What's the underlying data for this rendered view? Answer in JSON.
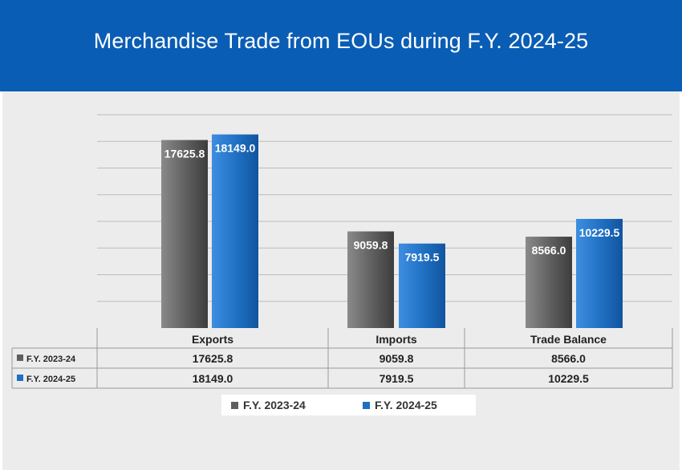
{
  "chart_data": {
    "type": "bar",
    "title": "Merchandise Trade from EOUs during F.Y. 2024-25",
    "categories": [
      "Exports",
      "Imports",
      "Trade Balance"
    ],
    "series": [
      {
        "name": "F.Y. 2023-24",
        "values": [
          17625.8,
          9059.8,
          8566.0
        ],
        "labels": [
          "17625.8",
          "9059.8",
          "8566.0"
        ],
        "color": "#5e5e5e"
      },
      {
        "name": "F.Y. 2024-25",
        "values": [
          18149.0,
          7919.5,
          10229.5
        ],
        "labels": [
          "18149.0",
          "7919.5",
          "10229.5"
        ],
        "color": "#1f6fc2"
      }
    ],
    "ylim": [
      0,
      20000
    ],
    "grid": true,
    "xlabel": "",
    "ylabel": "",
    "data_table": true,
    "legend_position": "bottom"
  }
}
